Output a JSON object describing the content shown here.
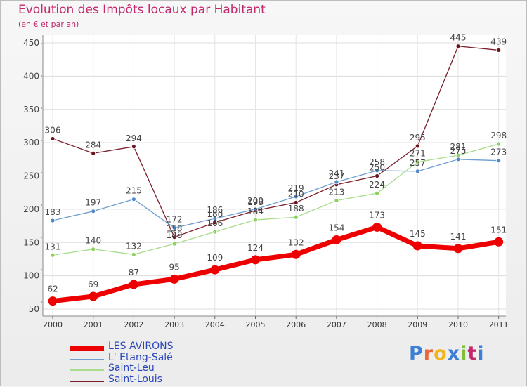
{
  "header": {
    "title": "Evolution des Impôts locaux par Habitant",
    "subtitle": "(en € et par an)"
  },
  "logo": {
    "text": "Proxiti",
    "letters": [
      "P",
      "r",
      "o",
      "x",
      "i",
      "t",
      "i"
    ],
    "colors": [
      "#3d7fd6",
      "#e8683a",
      "#f2b51d",
      "#3d7fd6",
      "#7bbf3a",
      "#c2296d",
      "#3d7fd6"
    ]
  },
  "chart_data": {
    "type": "line",
    "title": "Evolution des Impôts locaux par Habitant",
    "subtitle": "(en € et par an)",
    "xlabel": "",
    "ylabel": "",
    "ylim": [
      50,
      450
    ],
    "yticks": [
      50,
      100,
      150,
      200,
      250,
      300,
      350,
      400,
      450
    ],
    "grid": true,
    "legend_position": "bottom-left",
    "categories": [
      "2000",
      "2001",
      "2002",
      "2003",
      "2004",
      "2005",
      "2006",
      "2007",
      "2008",
      "2009",
      "2010",
      "2011"
    ],
    "series": [
      {
        "name": "Saint-Louis",
        "color": "#7a1f2b",
        "marker": "#6b1420",
        "highlight": false,
        "values": [
          306,
          284,
          294,
          158,
          180,
          198,
          210,
          237,
          250,
          295,
          445,
          439
        ]
      },
      {
        "name": "L' Etang-Salé",
        "color": "#6f9fd0",
        "marker": "#4f86c9",
        "highlight": false,
        "values": [
          183,
          197,
          215,
          172,
          186,
          200,
          219,
          241,
          258,
          257,
          275,
          273
        ]
      },
      {
        "name": "Saint-Leu",
        "color": "#a6dc8a",
        "marker": "#8ed05f",
        "highlight": false,
        "values": [
          131,
          140,
          132,
          148,
          166,
          184,
          188,
          213,
          224,
          271,
          281,
          298
        ]
      },
      {
        "name": "LES AVIRONS",
        "color": "#ee0000",
        "marker": "#ee0000",
        "highlight": true,
        "values": [
          62,
          69,
          87,
          95,
          109,
          124,
          132,
          154,
          173,
          145,
          141,
          151
        ]
      }
    ],
    "legend_order": [
      "LES AVIRONS",
      "L' Etang-Salé",
      "Saint-Leu",
      "Saint-Louis"
    ]
  }
}
